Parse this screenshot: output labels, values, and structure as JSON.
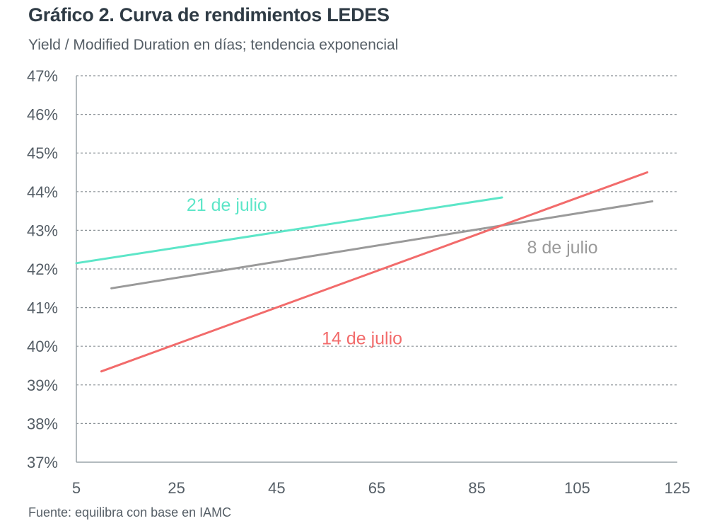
{
  "title": "Gráfico 2. Curva de rendimientos LEDES",
  "subtitle": "Yield / Modified Duration en días; tendencia exponencial",
  "source": "Fuente: equilibra con base en IAMC",
  "chart_data": {
    "type": "line",
    "title": "Gráfico 2. Curva de rendimientos LEDES",
    "subtitle": "Yield / Modified Duration en días; tendencia exponencial",
    "xlim": [
      5,
      125
    ],
    "ylim": [
      37,
      47
    ],
    "x_ticks": [
      "5",
      "25",
      "45",
      "65",
      "85",
      "105",
      "125"
    ],
    "y_ticks": [
      "37%",
      "38%",
      "39%",
      "40%",
      "41%",
      "42%",
      "43%",
      "44%",
      "45%",
      "46%",
      "47%"
    ],
    "grid": "horizontal dashed",
    "legend": "inline labels",
    "series": [
      {
        "name": "21 de julio",
        "color": "#5de6c8",
        "points": [
          {
            "x": 5,
            "y": 42.15
          },
          {
            "x": 90,
            "y": 43.85
          }
        ],
        "label_anchor": {
          "x": 27,
          "y": 43.5
        }
      },
      {
        "name": "8 de julio",
        "color": "#9a9a9a",
        "points": [
          {
            "x": 12,
            "y": 41.5
          },
          {
            "x": 120,
            "y": 43.75
          }
        ],
        "label_anchor": {
          "x": 95,
          "y": 42.4
        }
      },
      {
        "name": "14 de julio",
        "color": "#f26b6b",
        "points": [
          {
            "x": 10,
            "y": 39.35
          },
          {
            "x": 119,
            "y": 44.5
          }
        ],
        "label_anchor": {
          "x": 54,
          "y": 40.05
        }
      }
    ]
  }
}
